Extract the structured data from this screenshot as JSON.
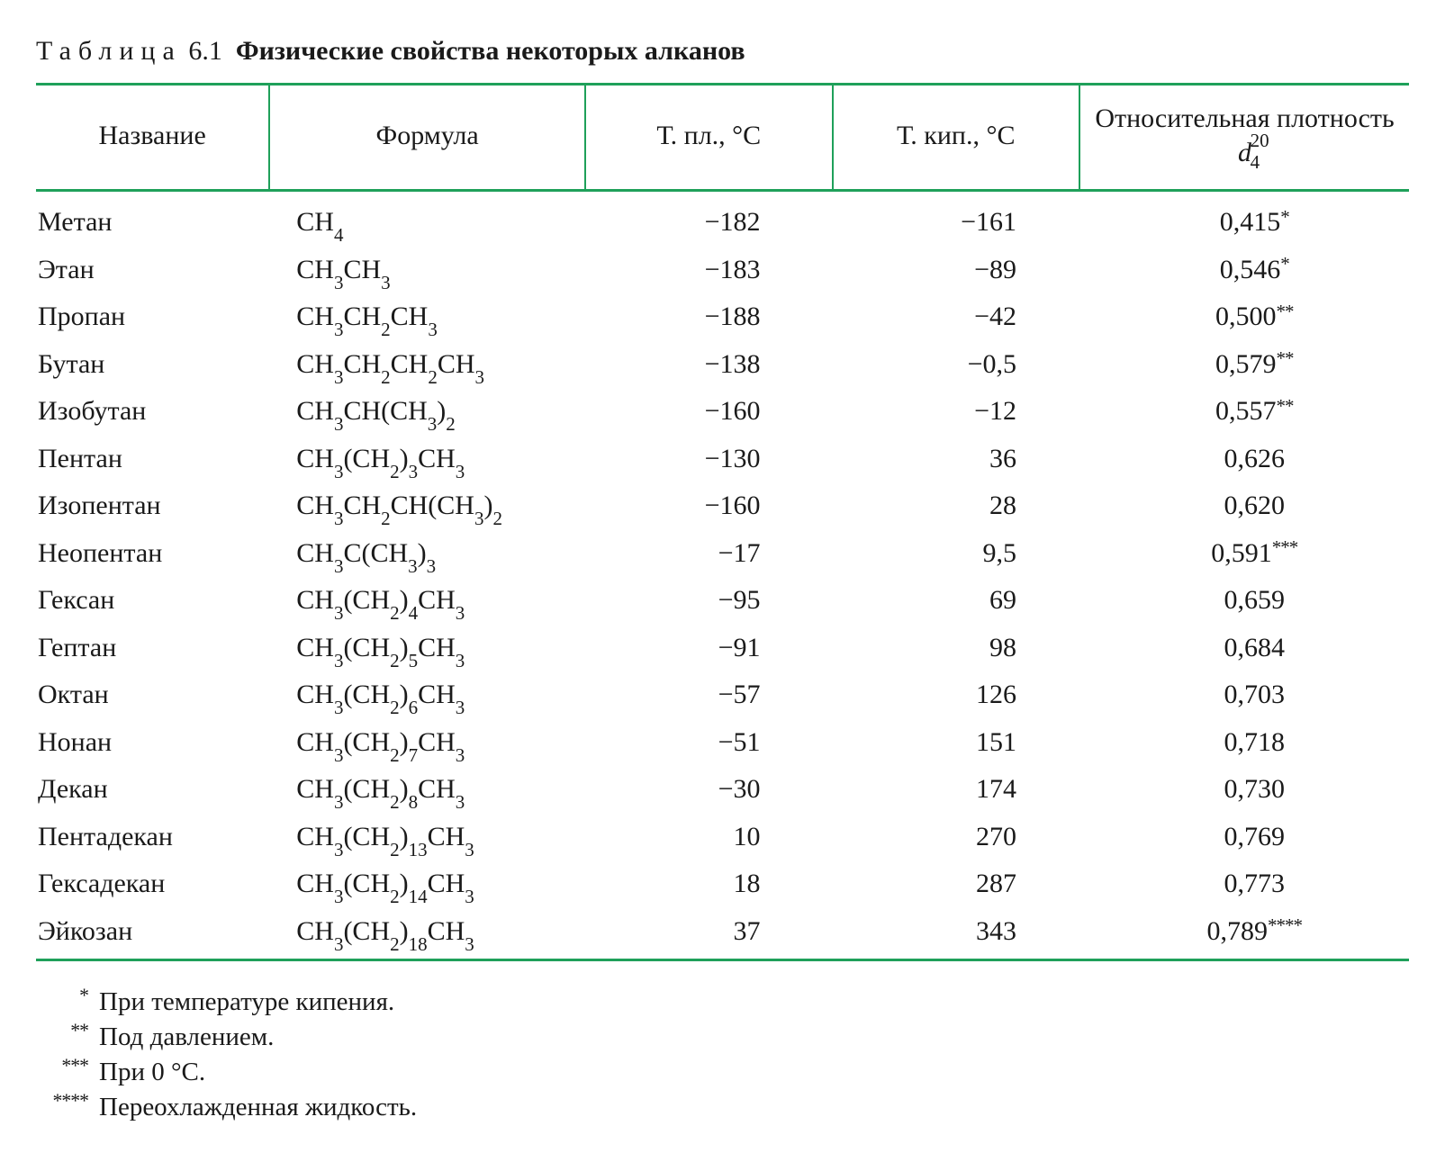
{
  "caption": {
    "label": "Таблица",
    "number": "6.1",
    "title": "Физические свойства некоторых алканов"
  },
  "colors": {
    "rule": "#1fa05a",
    "text": "#1a1a1a",
    "background": "#ffffff"
  },
  "typography": {
    "family": "Times New Roman",
    "base_size_pt": 22,
    "header_weight": 400,
    "title_weight": 700
  },
  "columns": [
    {
      "key": "name",
      "label": "Название",
      "align": "left"
    },
    {
      "key": "formula",
      "label": "Формула",
      "align": "left"
    },
    {
      "key": "tm",
      "label": "Т. пл., °C",
      "align": "right"
    },
    {
      "key": "tb",
      "label": "Т. кип., °C",
      "align": "right"
    },
    {
      "key": "density",
      "label_prefix": "Относительная плотность ",
      "d_symbol": "d",
      "d_sub": "4",
      "d_sup": "20",
      "align": "center"
    }
  ],
  "rows": [
    {
      "name": "Метан",
      "formula": "CH_{4}",
      "tm": "−182",
      "tb": "−161",
      "density": "0,415",
      "note": "*"
    },
    {
      "name": "Этан",
      "formula": "CH_{3}CH_{3}",
      "tm": "−183",
      "tb": "−89",
      "density": "0,546",
      "note": "*"
    },
    {
      "name": "Пропан",
      "formula": "CH_{3}CH_{2}CH_{3}",
      "tm": "−188",
      "tb": "−42",
      "density": "0,500",
      "note": "**"
    },
    {
      "name": "Бутан",
      "formula": "CH_{3}CH_{2}CH_{2}CH_{3}",
      "tm": "−138",
      "tb": "−0,5",
      "density": "0,579",
      "note": "**"
    },
    {
      "name": "Изобутан",
      "formula": "CH_{3}CH(CH_{3})_{2}",
      "tm": "−160",
      "tb": "−12",
      "density": "0,557",
      "note": "**"
    },
    {
      "name": "Пентан",
      "formula": "CH_{3}(CH_{2})_{3}CH_{3}",
      "tm": "−130",
      "tb": "36",
      "density": "0,626",
      "note": ""
    },
    {
      "name": "Изопентан",
      "formula": "CH_{3}CH_{2}CH(CH_{3})_{2}",
      "tm": "−160",
      "tb": "28",
      "density": "0,620",
      "note": ""
    },
    {
      "name": "Неопентан",
      "formula": "CH_{3}C(CH_{3})_{3}",
      "tm": "−17",
      "tb": "9,5",
      "density": "0,591",
      "note": "***"
    },
    {
      "name": "Гексан",
      "formula": "CH_{3}(CH_{2})_{4}CH_{3}",
      "tm": "−95",
      "tb": "69",
      "density": "0,659",
      "note": ""
    },
    {
      "name": "Гептан",
      "formula": "CH_{3}(CH_{2})_{5}CH_{3}",
      "tm": "−91",
      "tb": "98",
      "density": "0,684",
      "note": ""
    },
    {
      "name": "Октан",
      "formula": "CH_{3}(CH_{2})_{6}CH_{3}",
      "tm": "−57",
      "tb": "126",
      "density": "0,703",
      "note": ""
    },
    {
      "name": "Нонан",
      "formula": "CH_{3}(CH_{2})_{7}CH_{3}",
      "tm": "−51",
      "tb": "151",
      "density": "0,718",
      "note": ""
    },
    {
      "name": "Декан",
      "formula": "CH_{3}(CH_{2})_{8}CH_{3}",
      "tm": "−30",
      "tb": "174",
      "density": "0,730",
      "note": ""
    },
    {
      "name": "Пентадекан",
      "formula": "CH_{3}(CH_{2})_{13}CH_{3}",
      "tm": "10",
      "tb": "270",
      "density": "0,769",
      "note": ""
    },
    {
      "name": "Гексадекан",
      "formula": "CH_{3}(CH_{2})_{14}CH_{3}",
      "tm": "18",
      "tb": "287",
      "density": "0,773",
      "note": ""
    },
    {
      "name": "Эйкозан",
      "formula": "CH_{3}(CH_{2})_{18}CH_{3}",
      "tm": "37",
      "tb": "343",
      "density": "0,789",
      "note": "****"
    }
  ],
  "footnotes": [
    {
      "mark": "*",
      "text": "При температуре кипения."
    },
    {
      "mark": "**",
      "text": "Под давлением."
    },
    {
      "mark": "***",
      "text": "При 0 °C."
    },
    {
      "mark": "****",
      "text": "Переохлажденная жидкость."
    }
  ]
}
